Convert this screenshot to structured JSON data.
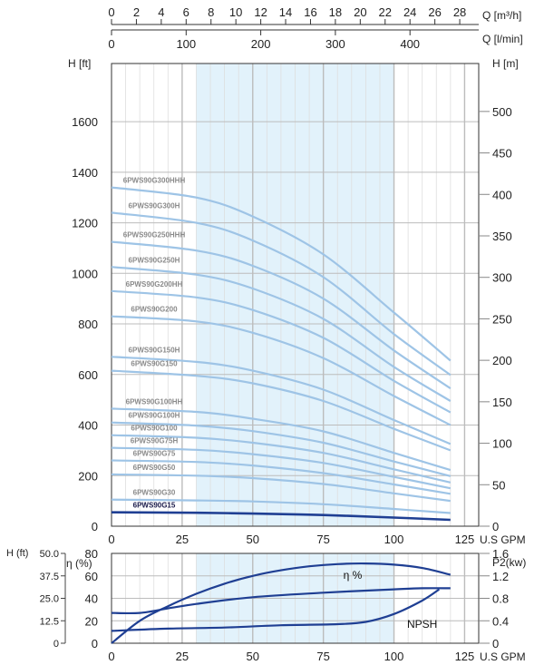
{
  "colors": {
    "curve": "#9ec4e6",
    "highlight_curve": "#1f3f93",
    "op_band": "#e2f2fb",
    "grid_major": "#bcbcbc",
    "grid_minor": "#dedede",
    "frame": "#333333"
  },
  "flow_axes": {
    "q_m3h": {
      "unit": "Q [m³/h]",
      "ticks": [
        "0",
        "2",
        "4",
        "6",
        "8",
        "10",
        "12",
        "14",
        "16",
        "18",
        "20",
        "22",
        "24",
        "26",
        "28"
      ]
    },
    "q_lmin": {
      "unit": "Q [l/min]",
      "ticks": [
        "0",
        "100",
        "200",
        "300",
        "400"
      ]
    }
  },
  "chart_data": [
    {
      "type": "line",
      "xlabel": "U.S GPM",
      "ylabel": "H [ft]",
      "y2label": "H [m]",
      "xlim": [
        0,
        130
      ],
      "ylim": [
        0,
        1830
      ],
      "y2lim": [
        0,
        557.8
      ],
      "x_ticks": [
        0,
        25,
        50,
        75,
        100,
        125
      ],
      "y_ticks": [
        0,
        200,
        400,
        600,
        800,
        1000,
        1200,
        1400,
        1600
      ],
      "y2_ticks": [
        0,
        50,
        100,
        150,
        200,
        250,
        300,
        350,
        400,
        450,
        500
      ],
      "operating_band_gpm": [
        30,
        100
      ],
      "grid": true,
      "highlighted_series": "6PWS90G15",
      "series": [
        {
          "name": "6PWS90G300HHH",
          "x": [
            0,
            30,
            50,
            75,
            100,
            120
          ],
          "y": [
            1340,
            1300,
            1225,
            1075,
            845,
            655
          ]
        },
        {
          "name": "6PWS90G300H",
          "x": [
            0,
            30,
            50,
            75,
            100,
            120
          ],
          "y": [
            1240,
            1200,
            1130,
            985,
            760,
            598
          ]
        },
        {
          "name": "6PWS90G250HHH",
          "x": [
            0,
            30,
            50,
            75,
            100,
            120
          ],
          "y": [
            1125,
            1090,
            1030,
            900,
            695,
            545
          ]
        },
        {
          "name": "6PWS90G250H",
          "x": [
            0,
            30,
            50,
            75,
            100,
            120
          ],
          "y": [
            1025,
            995,
            940,
            820,
            630,
            495
          ]
        },
        {
          "name": "6PWS90G200HH",
          "x": [
            0,
            30,
            50,
            75,
            100,
            120
          ],
          "y": [
            930,
            905,
            855,
            745,
            575,
            450
          ]
        },
        {
          "name": "6PWS90G200",
          "x": [
            0,
            30,
            50,
            75,
            100,
            120
          ],
          "y": [
            830,
            810,
            765,
            665,
            515,
            400
          ]
        },
        {
          "name": "6PWS90G150H",
          "x": [
            0,
            30,
            50,
            75,
            100,
            120
          ],
          "y": [
            670,
            650,
            615,
            540,
            420,
            325
          ]
        },
        {
          "name": "6PWS90G150",
          "x": [
            0,
            30,
            50,
            75,
            100,
            120
          ],
          "y": [
            615,
            595,
            565,
            495,
            385,
            300
          ]
        },
        {
          "name": "6PWS90G100HH",
          "x": [
            0,
            30,
            50,
            75,
            100,
            120
          ],
          "y": [
            465,
            452,
            425,
            375,
            290,
            222
          ]
        },
        {
          "name": "6PWS90G100H",
          "x": [
            0,
            30,
            50,
            75,
            100,
            120
          ],
          "y": [
            410,
            398,
            376,
            330,
            256,
            198
          ]
        },
        {
          "name": "6PWS90G100",
          "x": [
            0,
            30,
            50,
            75,
            100,
            120
          ],
          "y": [
            360,
            350,
            330,
            290,
            225,
            173
          ]
        },
        {
          "name": "6PWS90G75H",
          "x": [
            0,
            30,
            50,
            75,
            100,
            120
          ],
          "y": [
            310,
            302,
            285,
            250,
            195,
            150
          ]
        },
        {
          "name": "6PWS90G75",
          "x": [
            0,
            30,
            50,
            75,
            100,
            120
          ],
          "y": [
            260,
            254,
            240,
            210,
            165,
            128
          ]
        },
        {
          "name": "6PWS90G50",
          "x": [
            0,
            30,
            50,
            75,
            100,
            120
          ],
          "y": [
            205,
            200,
            190,
            167,
            130,
            100
          ]
        },
        {
          "name": "6PWS90G30",
          "x": [
            0,
            30,
            50,
            75,
            100,
            120
          ],
          "y": [
            105,
            102,
            98,
            87,
            68,
            52
          ]
        },
        {
          "name": "6PWS90G15",
          "x": [
            0,
            30,
            50,
            75,
            100,
            120
          ],
          "y": [
            55,
            53,
            50,
            44,
            34,
            25
          ]
        }
      ]
    },
    {
      "type": "line",
      "xlabel": "U.S GPM",
      "ylabel": "η (%)",
      "y_outer_label": "H (ft)",
      "y2label": "P2(kw)",
      "xlim": [
        0,
        130
      ],
      "ylim": [
        0,
        80
      ],
      "x_ticks": [
        0,
        25,
        50,
        75,
        100,
        125
      ],
      "y_ticks": [
        0,
        20,
        40,
        60,
        80
      ],
      "y_outer_ticks": [
        "0",
        "12.5",
        "25.0",
        "37.5",
        "50.0"
      ],
      "y2_ticks": [
        "0",
        "0.4",
        "0.8",
        "1.2",
        "1.6"
      ],
      "operating_band_gpm": [
        30,
        100
      ],
      "grid": true,
      "series": [
        {
          "name": "η %",
          "x": [
            0,
            10,
            20,
            30,
            40,
            50,
            60,
            70,
            80,
            90,
            100,
            110,
            120
          ],
          "y": [
            0,
            20,
            33,
            44,
            53,
            60,
            65,
            68.5,
            70.5,
            71,
            70,
            67,
            61
          ]
        },
        {
          "name": "",
          "x": [
            0,
            10,
            20,
            30,
            50,
            75,
            100,
            110,
            120
          ],
          "y": [
            27,
            27,
            31,
            35,
            41,
            45,
            48,
            49,
            49
          ]
        },
        {
          "name": "NPSH",
          "x": [
            0,
            20,
            40,
            60,
            80,
            90,
            100,
            110,
            116
          ],
          "y": [
            11,
            13,
            14,
            16,
            17,
            19,
            26,
            38,
            48
          ]
        }
      ]
    }
  ]
}
